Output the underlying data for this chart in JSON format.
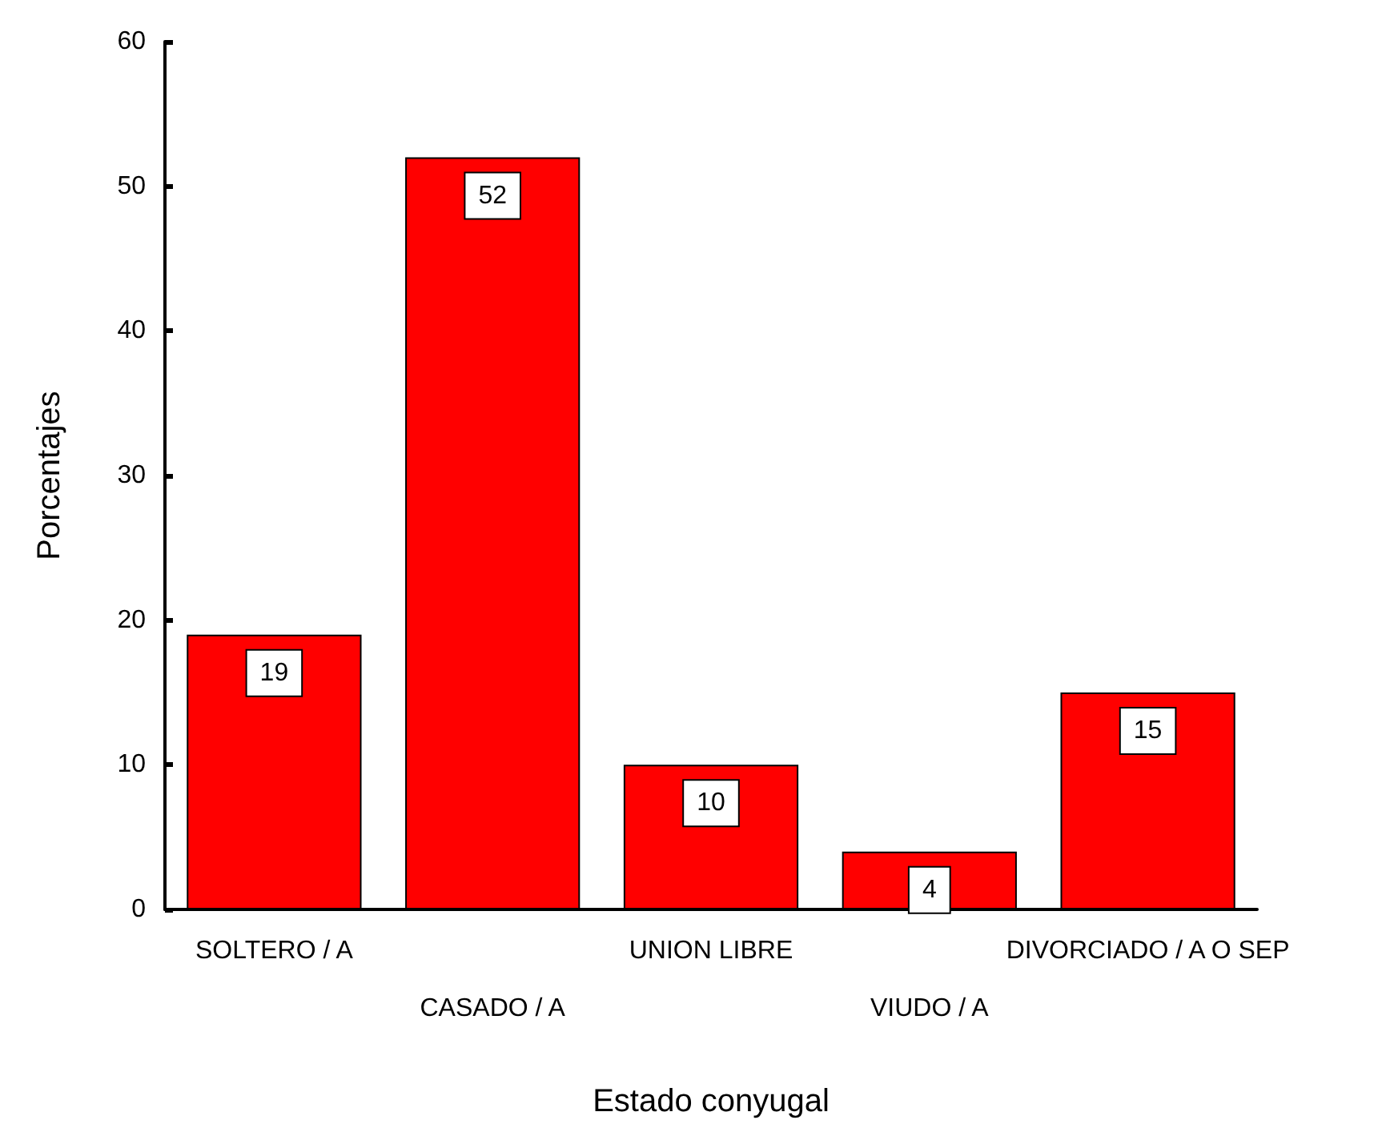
{
  "chart_data": {
    "type": "bar",
    "xlabel": "Estado conyugal",
    "ylabel": "Porcentajes",
    "categories": [
      "SOLTERO / A",
      "CASADO / A",
      "UNION LIBRE",
      "VIUDO / A",
      "DIVORCIADO / A O SEP"
    ],
    "values": [
      19,
      52,
      10,
      4,
      15
    ],
    "color": "#ff0000",
    "ylim": [
      0,
      60
    ],
    "yticks": [
      0,
      10,
      20,
      30,
      40,
      50,
      60
    ],
    "data_labels": true
  }
}
